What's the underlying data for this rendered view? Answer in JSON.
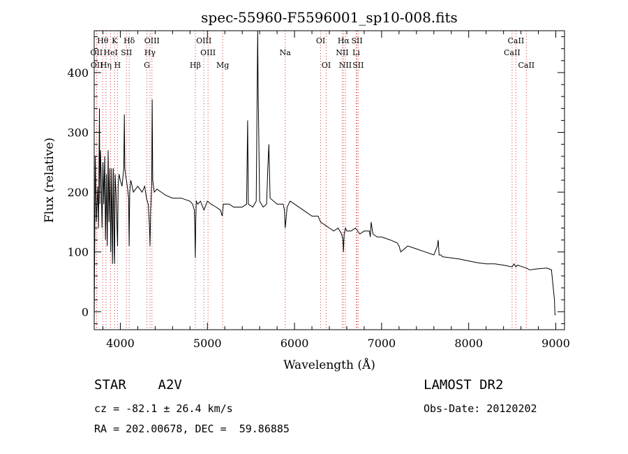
{
  "chart_data": {
    "type": "line",
    "title": "spec-55960-F5596001_sp10-008.fits",
    "xlabel": "Wavelength (Å)",
    "ylabel": "Flux (relative)",
    "xlim": [
      3700,
      9100
    ],
    "ylim": [
      -30,
      470
    ],
    "x_ticks": [
      4000,
      5000,
      6000,
      7000,
      8000,
      9000
    ],
    "y_ticks": [
      0,
      100,
      200,
      300,
      400
    ],
    "grid": false,
    "series": [
      {
        "x": [
          3700,
          3712,
          3725,
          3740,
          3750,
          3760,
          3766,
          3772,
          3780,
          3790,
          3800,
          3810,
          3820,
          3830,
          3840,
          3850,
          3860,
          3870,
          3880,
          3890,
          3900,
          3910,
          3920,
          3930,
          3934,
          3940,
          3950,
          3960,
          3968,
          3975,
          3985,
          4000,
          4020,
          4040,
          4046,
          4052,
          4060,
          4080,
          4095,
          4101,
          4108,
          4120,
          4150,
          4200,
          4250,
          4280,
          4300,
          4320,
          4335,
          4341,
          4348,
          4360,
          4366,
          4372,
          4390,
          4420,
          4470,
          4520,
          4600,
          4700,
          4800,
          4830,
          4850,
          4856,
          4861,
          4866,
          4872,
          4890,
          4920,
          4960,
          5000,
          5040,
          5100,
          5150,
          5170,
          5183,
          5200,
          5250,
          5300,
          5400,
          5450,
          5462,
          5470,
          5520,
          5560,
          5572,
          5577,
          5582,
          5600,
          5640,
          5680,
          5693,
          5705,
          5720,
          5800,
          5870,
          5885,
          5893,
          5900,
          5915,
          5950,
          6000,
          6100,
          6200,
          6270,
          6300,
          6350,
          6400,
          6450,
          6500,
          6540,
          6556,
          6563,
          6570,
          6585,
          6600,
          6650,
          6700,
          6750,
          6800,
          6860,
          6870,
          6880,
          6900,
          6950,
          7000,
          7100,
          7180,
          7200,
          7220,
          7300,
          7400,
          7500,
          7600,
          7640,
          7650,
          7660,
          7680,
          7700,
          7800,
          7900,
          8000,
          8100,
          8200,
          8300,
          8400,
          8498,
          8520,
          8542,
          8560,
          8600,
          8662,
          8700,
          8800,
          8900,
          8950,
          8985,
          8990,
          9000
        ],
        "y": [
          -20,
          260,
          150,
          210,
          140,
          340,
          180,
          270,
          230,
          140,
          250,
          180,
          260,
          120,
          230,
          110,
          270,
          150,
          240,
          100,
          240,
          80,
          240,
          100,
          80,
          230,
          200,
          150,
          110,
          210,
          230,
          220,
          210,
          240,
          330,
          240,
          230,
          210,
          190,
          110,
          200,
          220,
          200,
          210,
          200,
          210,
          190,
          180,
          140,
          110,
          170,
          210,
          355,
          220,
          200,
          205,
          200,
          195,
          190,
          190,
          185,
          180,
          170,
          135,
          90,
          150,
          185,
          180,
          185,
          170,
          185,
          180,
          175,
          170,
          160,
          180,
          180,
          180,
          175,
          175,
          180,
          320,
          180,
          175,
          185,
          390,
          470,
          380,
          185,
          175,
          180,
          240,
          280,
          190,
          180,
          180,
          170,
          140,
          150,
          175,
          185,
          180,
          170,
          160,
          160,
          150,
          145,
          140,
          135,
          140,
          130,
          120,
          100,
          130,
          140,
          135,
          135,
          140,
          130,
          135,
          135,
          125,
          150,
          130,
          125,
          125,
          120,
          115,
          110,
          100,
          110,
          105,
          100,
          95,
          110,
          120,
          95,
          95,
          92,
          90,
          88,
          85,
          82,
          80,
          80,
          78,
          75,
          80,
          75,
          78,
          76,
          73,
          70,
          72,
          73,
          70,
          20,
          -5,
          -5
        ]
      }
    ],
    "line_markers": [
      {
        "label": "Hθ",
        "wavelength": 3798,
        "color": "#d33333",
        "row": 1
      },
      {
        "label": "K",
        "wavelength": 3934,
        "color": "#d33333",
        "row": 1
      },
      {
        "label": "Hδ",
        "wavelength": 4102,
        "color": "#d33333",
        "row": 1
      },
      {
        "label": "OIII",
        "wavelength": 4363,
        "color": "#d33333",
        "row": 1
      },
      {
        "label": "OIII",
        "wavelength": 4959,
        "color": "#d33333",
        "row": 1
      },
      {
        "label": "OI",
        "wavelength": 6300,
        "color": "#d33333",
        "row": 1
      },
      {
        "label": "Hα",
        "wavelength": 6563,
        "color": "#d33333",
        "row": 1
      },
      {
        "label": "SII",
        "wavelength": 6717,
        "color": "#d33333",
        "row": 1
      },
      {
        "label": "CaII",
        "wavelength": 8542,
        "color": "#d33333",
        "row": 1
      },
      {
        "label": "OII",
        "wavelength": 3726,
        "color": "#d33333",
        "row": 2
      },
      {
        "label": "HeI",
        "wavelength": 3889,
        "color": "#d33333",
        "row": 2
      },
      {
        "label": "SII",
        "wavelength": 4070,
        "color": "#d33333",
        "row": 2
      },
      {
        "label": "Hγ",
        "wavelength": 4340,
        "color": "#d33333",
        "row": 2
      },
      {
        "label": "OIII",
        "wavelength": 5007,
        "color": "#d33333",
        "row": 2
      },
      {
        "label": "Na",
        "wavelength": 5893,
        "color": "#d33333",
        "row": 2
      },
      {
        "label": "NII",
        "wavelength": 6548,
        "color": "#d33333",
        "row": 2
      },
      {
        "label": "Li",
        "wavelength": 6708,
        "color": "#d33333",
        "row": 2
      },
      {
        "label": "CaII",
        "wavelength": 8498,
        "color": "#d33333",
        "row": 2
      },
      {
        "label": "OII",
        "wavelength": 3729,
        "color": "#d33333",
        "row": 3
      },
      {
        "label": "Hη",
        "wavelength": 3835,
        "color": "#d33333",
        "row": 3
      },
      {
        "label": "H",
        "wavelength": 3968,
        "color": "#d33333",
        "row": 3
      },
      {
        "label": "G",
        "wavelength": 4305,
        "color": "#d33333",
        "row": 3
      },
      {
        "label": "Hβ",
        "wavelength": 4861,
        "color": "#d33333",
        "row": 3
      },
      {
        "label": "Mg",
        "wavelength": 5175,
        "color": "#d33333",
        "row": 3
      },
      {
        "label": "OI",
        "wavelength": 6364,
        "color": "#d33333",
        "row": 3
      },
      {
        "label": "NII",
        "wavelength": 6584,
        "color": "#d33333",
        "row": 3
      },
      {
        "label": "SII",
        "wavelength": 6731,
        "color": "#d33333",
        "row": 3
      },
      {
        "label": "CaII",
        "wavelength": 8662,
        "color": "#d33333",
        "row": 3
      }
    ],
    "colors": {
      "spectrum": "#000000",
      "markers": "#d33333",
      "axes": "#000000"
    }
  },
  "info": {
    "object_class": "STAR    A2V",
    "survey": "LAMOST DR2",
    "cz": "cz = -82.1 ± 26.4 km/s",
    "obs_date": "Obs-Date: 20120202",
    "radec": "RA = 202.00678, DEC =  59.86885"
  }
}
